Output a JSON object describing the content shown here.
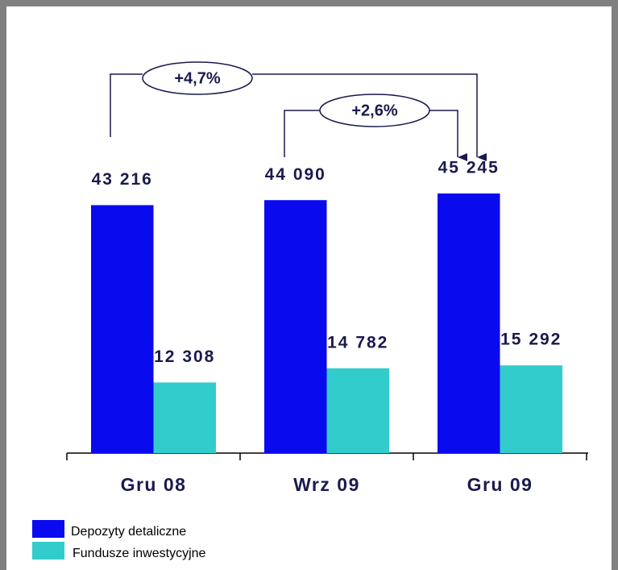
{
  "chart_data": {
    "type": "bar",
    "categories": [
      "Gru 08",
      "Wrz 09",
      "Gru 09"
    ],
    "series": [
      {
        "name": "Depozyty detaliczne",
        "color": "#0a0aee",
        "values": [
          43216,
          44090,
          45245
        ],
        "value_labels": [
          "43 216",
          "44 090",
          "45 245"
        ]
      },
      {
        "name": "Fundusze inwestycyjne",
        "color": "#33cccc",
        "values": [
          12308,
          14782,
          15292
        ],
        "value_labels": [
          "12 308",
          "14 782",
          "15 292"
        ]
      }
    ],
    "annotations": [
      "+4,7%",
      "+2,6%"
    ]
  }
}
